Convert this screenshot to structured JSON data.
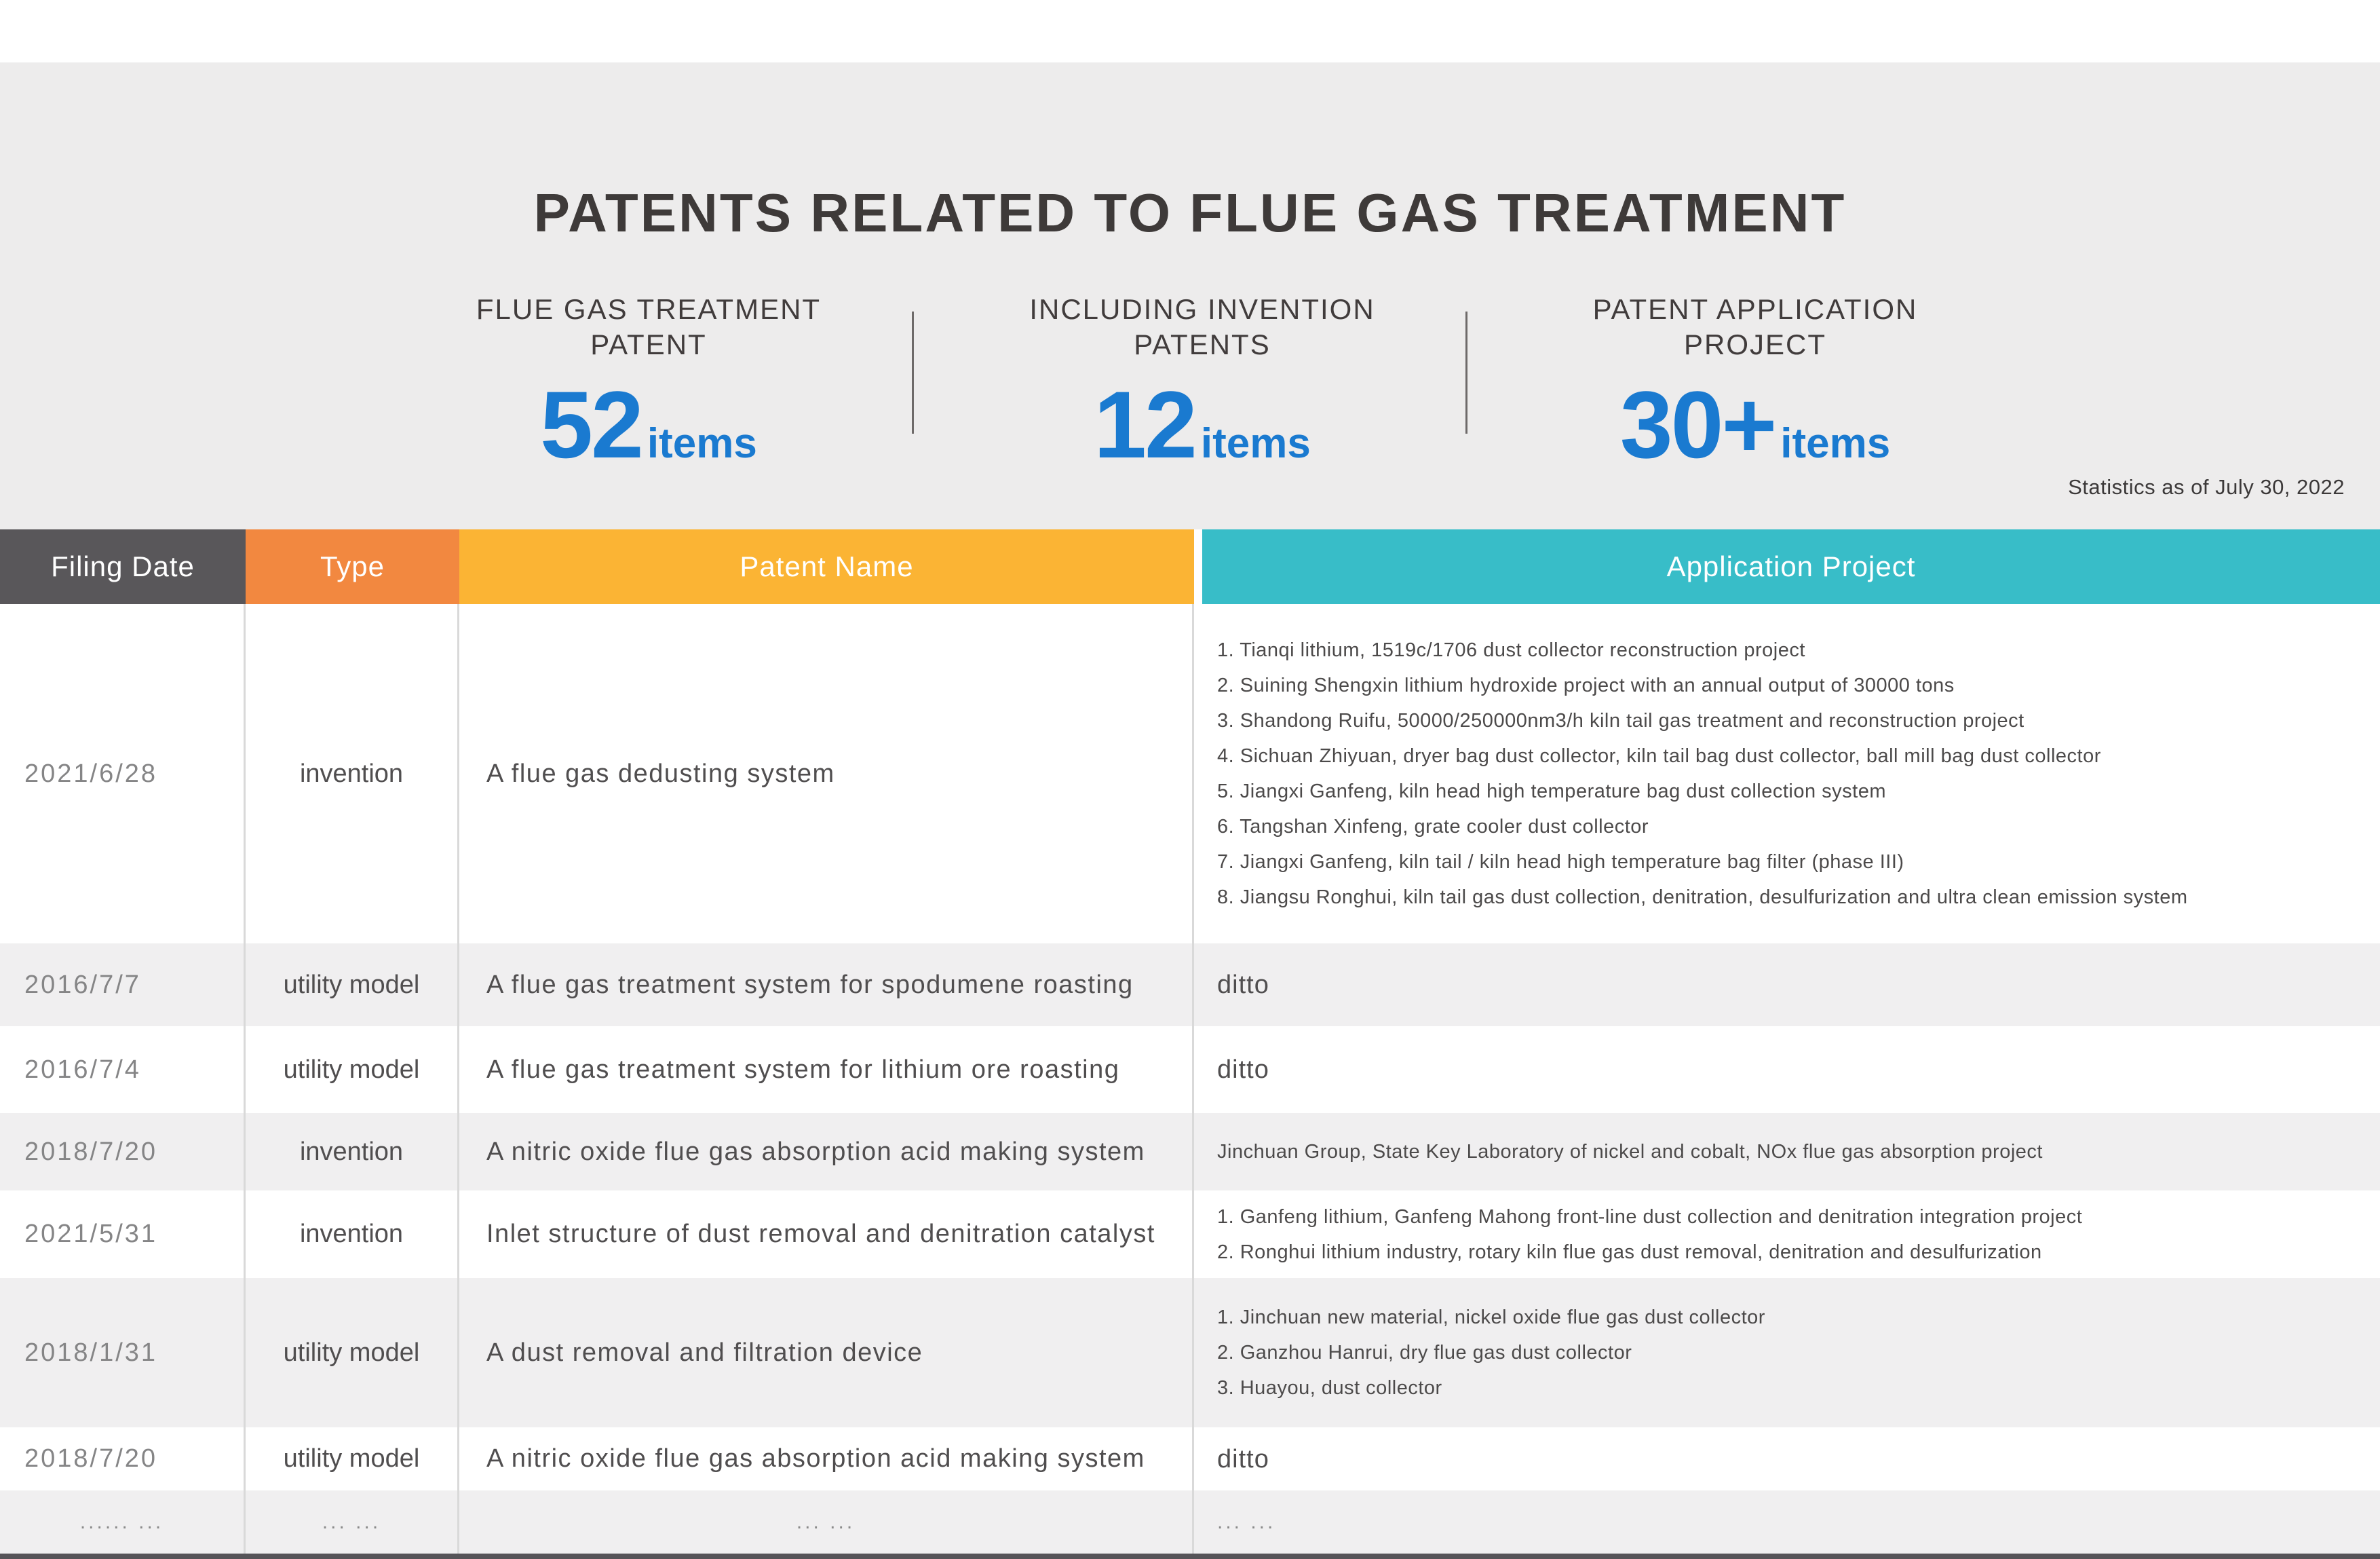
{
  "page": {
    "title": "PATENTS RELATED TO FLUE GAS TREATMENT",
    "note": "Statistics as of July 30, 2022"
  },
  "stats": [
    {
      "label_lines": [
        "FLUE GAS TREATMENT",
        "PATENT"
      ],
      "value": "52",
      "unit": "items"
    },
    {
      "label_lines": [
        "INCLUDING INVENTION",
        "PATENTS"
      ],
      "value": "12",
      "unit": "items"
    },
    {
      "label_lines": [
        "PATENT APPLICATION",
        "PROJECT"
      ],
      "value": "30+",
      "unit": "items"
    }
  ],
  "table": {
    "headers": [
      "Filing Date",
      "Type",
      "Patent Name",
      "Application Project"
    ],
    "rows": [
      {
        "filing_date": "2021/6/28",
        "type": "invention",
        "patent_name": "A flue gas dedusting system",
        "application_project": [
          "1. Tianqi lithium, 1519c/1706 dust collector reconstruction project",
          "2. Suining Shengxin lithium hydroxide project with an annual output of 30000 tons",
          "3. Shandong Ruifu, 50000/250000nm3/h kiln tail gas treatment and reconstruction project",
          "4. Sichuan Zhiyuan, dryer bag dust collector, kiln tail bag dust collector, ball mill bag dust collector",
          "5. Jiangxi Ganfeng, kiln head high temperature bag dust collection system",
          "6. Tangshan Xinfeng, grate cooler dust collector",
          "7. Jiangxi Ganfeng, kiln tail / kiln head high temperature bag filter (phase III)",
          "8. Jiangsu Ronghui, kiln tail gas dust collection, denitration, desulfurization and ultra clean emission system"
        ]
      },
      {
        "filing_date": "2016/7/7",
        "type": "utility model",
        "patent_name": "A flue gas treatment system for spodumene roasting",
        "application_project": [
          "ditto"
        ]
      },
      {
        "filing_date": "2016/7/4",
        "type": "utility model",
        "patent_name": "A flue gas treatment system for lithium ore roasting",
        "application_project": [
          "ditto"
        ]
      },
      {
        "filing_date": "2018/7/20",
        "type": "invention",
        "patent_name": "A nitric oxide flue gas absorption acid making system",
        "application_project": [
          "Jinchuan Group, State Key Laboratory of nickel and cobalt, NOx flue gas absorption project"
        ]
      },
      {
        "filing_date": "2021/5/31",
        "type": "invention",
        "patent_name": "Inlet structure of dust removal and denitration catalyst",
        "application_project": [
          "1. Ganfeng lithium, Ganfeng Mahong front-line dust collection and denitration integration project",
          "2. Ronghui lithium industry, rotary kiln flue gas dust removal, denitration and desulfurization"
        ]
      },
      {
        "filing_date": "2018/1/31",
        "type": "utility model",
        "patent_name": "A dust removal and filtration device",
        "application_project": [
          "1. Jinchuan new material, nickel oxide flue gas dust collector",
          "2. Ganzhou Hanrui, dry flue gas dust collector",
          "3. Huayou, dust collector"
        ]
      },
      {
        "filing_date": "2018/7/20",
        "type": "utility model",
        "patent_name": "A nitric oxide flue gas absorption acid making system",
        "application_project": [
          "ditto"
        ]
      },
      {
        "is_dots": true,
        "filing_date": "...... ...",
        "type": "... ...",
        "patent_name": "... ...",
        "application_project": [
          "... ..."
        ]
      }
    ]
  },
  "colors": {
    "accent_blue": "#1a7ad0",
    "page_bg": "#edecec",
    "header_filing": "#59575a",
    "header_type": "#f28840",
    "header_patent": "#fbb434",
    "header_application": "#38bdc8",
    "row_alt": "#f0eff0",
    "footer_bar": "#565458"
  }
}
